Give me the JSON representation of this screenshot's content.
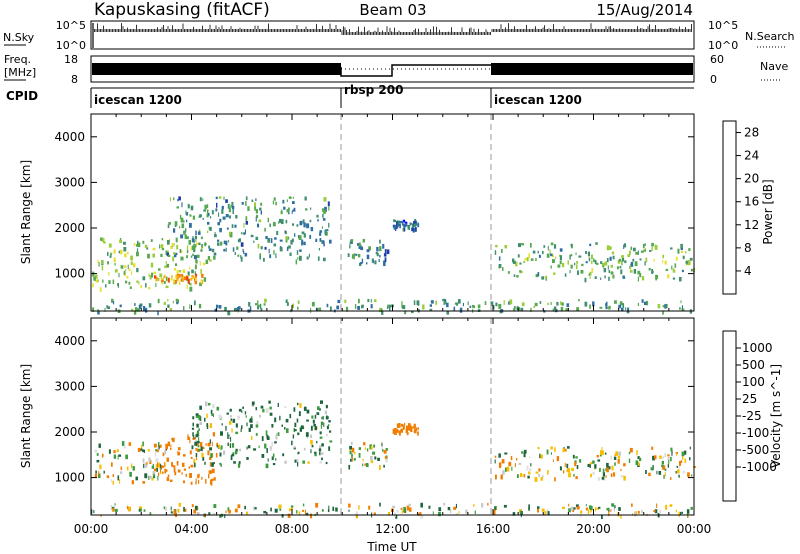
{
  "header": {
    "station": "Kapuskasing (fitACF)",
    "beam": "Beam 03",
    "date": "15/Aug/2014"
  },
  "noise_panel": {
    "left_label": "N.Sky",
    "right_label": "N.Search",
    "left_ticks": [
      "10^5",
      "10^0"
    ],
    "right_ticks": [
      "10^5",
      "10^0"
    ]
  },
  "freq_panel": {
    "left_label_1": "Freq.",
    "left_label_2": "[MHz]",
    "right_label": "Nave",
    "left_ticks": [
      "18",
      "8"
    ],
    "right_ticks": [
      "60",
      "0"
    ]
  },
  "cpid_panel": {
    "label": "CPID",
    "segments": [
      {
        "name": "icescan 1200",
        "start_h": 0,
        "end_h": 10
      },
      {
        "name": "rbsp 200",
        "start_h": 10,
        "end_h": 16
      },
      {
        "name": "icescan 1200",
        "start_h": 16,
        "end_h": 24
      }
    ]
  },
  "x_axis": {
    "label": "Time UT",
    "ticks": [
      "00:00",
      "04:00",
      "08:00",
      "12:00",
      "16:00",
      "20:00",
      "00:00"
    ]
  },
  "colors": {
    "power_scale": [
      "#0000ff",
      "#1f3fa8",
      "#2e6fa0",
      "#3f8f6f",
      "#56a84f",
      "#9bcc3c",
      "#e8e030",
      "#f5b018",
      "#f08010",
      "#e84010",
      "#ff0000"
    ],
    "velocity_scale": [
      "#e10000",
      "#e23700",
      "#f07d00",
      "#f5bf00",
      "#e0e0e0",
      "#c8c8c8",
      "#3c9b3c",
      "#1e643c",
      "#1e3c96",
      "#1e1eb4"
    ]
  },
  "chart_data": [
    {
      "type": "heatmap",
      "title": "Power",
      "xlabel": "Time UT",
      "ylabel": "Slant Range [km]",
      "xlim_hours": [
        0,
        24
      ],
      "ylim_km": [
        180,
        4500
      ],
      "y_ticks": [
        1000,
        2000,
        3000,
        4000
      ],
      "colorbar": {
        "label": "Power [dB]",
        "ticks": [
          4,
          8,
          12,
          16,
          20,
          24,
          28
        ],
        "range": [
          0,
          30
        ]
      },
      "echo_regions": [
        {
          "t_start": 0,
          "t_end": 4.5,
          "r_min": 700,
          "r_max": 1800,
          "power_db": 14
        },
        {
          "t_start": 2.5,
          "t_end": 4.5,
          "r_min": 850,
          "r_max": 1000,
          "power_db": 22
        },
        {
          "t_start": 3,
          "t_end": 9.5,
          "r_min": 1300,
          "r_max": 2700,
          "power_db": 9
        },
        {
          "t_start": 10.2,
          "t_end": 11.8,
          "r_min": 1200,
          "r_max": 1800,
          "power_db": 8
        },
        {
          "t_start": 12,
          "t_end": 13,
          "r_min": 2000,
          "r_max": 2200,
          "power_db": 6
        },
        {
          "t_start": 16,
          "t_end": 24,
          "r_min": 900,
          "r_max": 1700,
          "power_db": 12
        },
        {
          "t_start": 0,
          "t_end": 24,
          "r_min": 180,
          "r_max": 450,
          "power_db": 10
        }
      ]
    },
    {
      "type": "heatmap",
      "title": "Velocity",
      "xlabel": "Time UT",
      "ylabel": "Slant Range [km]",
      "xlim_hours": [
        0,
        24
      ],
      "ylim_km": [
        180,
        4500
      ],
      "y_ticks": [
        1000,
        2000,
        3000,
        4000
      ],
      "colorbar": {
        "label": "Velocity [m s^-1]",
        "ticks": [
          1000,
          500,
          100,
          25,
          -25,
          -100,
          -500,
          -1000
        ]
      },
      "echo_regions": [
        {
          "t_start": 0,
          "t_end": 3,
          "r_min": 900,
          "r_max": 1800,
          "velocity": 0
        },
        {
          "t_start": 2.5,
          "t_end": 5,
          "r_min": 900,
          "r_max": 2000,
          "velocity": -300
        },
        {
          "t_start": 4,
          "t_end": 9.5,
          "r_min": 1300,
          "r_max": 2700,
          "velocity": 150
        },
        {
          "t_start": 10.2,
          "t_end": 11.8,
          "r_min": 1200,
          "r_max": 1800,
          "velocity": 0
        },
        {
          "t_start": 12,
          "t_end": 13,
          "r_min": 2000,
          "r_max": 2200,
          "velocity": -300
        },
        {
          "t_start": 16,
          "t_end": 24,
          "r_min": 1000,
          "r_max": 1700,
          "velocity": 0
        },
        {
          "t_start": 0,
          "t_end": 24,
          "r_min": 180,
          "r_max": 450,
          "velocity": 0
        }
      ]
    }
  ]
}
